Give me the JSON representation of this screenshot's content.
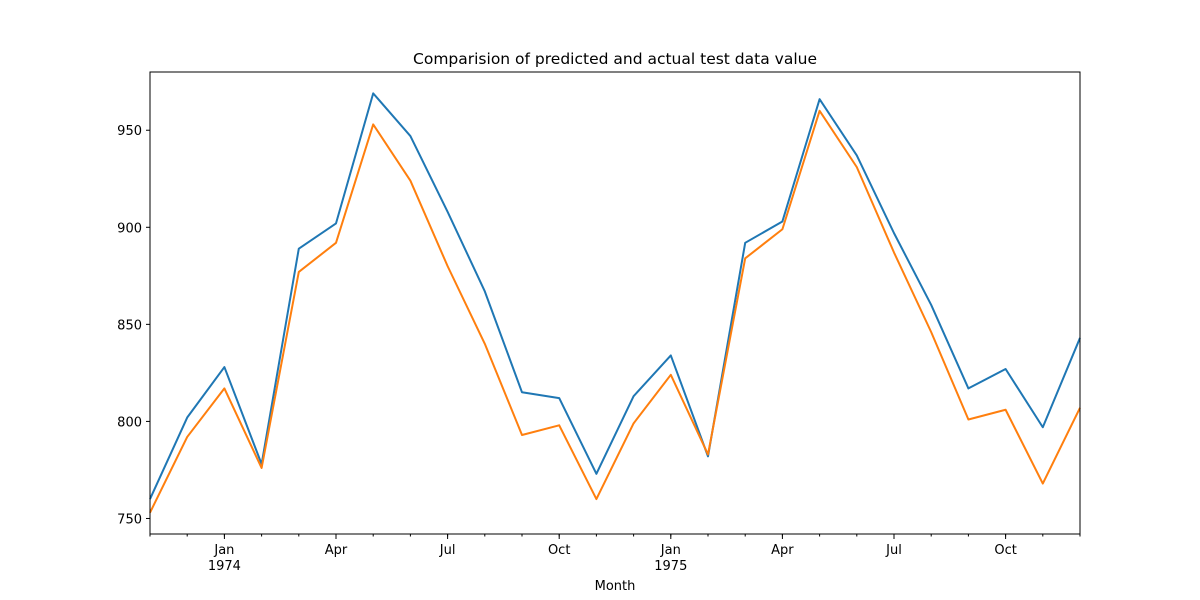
{
  "chart_data": {
    "type": "line",
    "title": "Comparision of predicted and actual test data value",
    "xlabel": "Month",
    "ylabel": "",
    "x": [
      "1973-11",
      "1973-12",
      "1974-01",
      "1974-02",
      "1974-03",
      "1974-04",
      "1974-05",
      "1974-06",
      "1974-07",
      "1974-08",
      "1974-09",
      "1974-10",
      "1974-11",
      "1974-12",
      "1975-01",
      "1975-02",
      "1975-03",
      "1975-04",
      "1975-05",
      "1975-06",
      "1975-07",
      "1975-08",
      "1975-09",
      "1975-10",
      "1975-11",
      "1975-12"
    ],
    "series": [
      {
        "color": "#1f77b4",
        "values": [
          760,
          802,
          828,
          778,
          889,
          902,
          969,
          947,
          908,
          867,
          815,
          812,
          773,
          813,
          834,
          782,
          892,
          903,
          966,
          937,
          897,
          860,
          817,
          827,
          797,
          843
        ]
      },
      {
        "color": "#ff7f0e",
        "values": [
          753,
          792,
          817,
          776,
          877,
          892,
          953,
          924,
          880,
          840,
          793,
          798,
          760,
          799,
          824,
          783,
          884,
          899,
          960,
          931,
          887,
          846,
          801,
          806,
          768,
          807
        ]
      }
    ],
    "ylim": [
      742,
      980
    ],
    "yticks": [
      750,
      800,
      850,
      900,
      950
    ],
    "xtick_labels": [
      {
        "month": "1974-01",
        "label": "Jan",
        "sublabel": "1974"
      },
      {
        "month": "1974-04",
        "label": "Apr",
        "sublabel": ""
      },
      {
        "month": "1974-07",
        "label": "Jul",
        "sublabel": ""
      },
      {
        "month": "1974-10",
        "label": "Oct",
        "sublabel": ""
      },
      {
        "month": "1975-01",
        "label": "Jan",
        "sublabel": "1975"
      },
      {
        "month": "1975-04",
        "label": "Apr",
        "sublabel": ""
      },
      {
        "month": "1975-07",
        "label": "Jul",
        "sublabel": ""
      },
      {
        "month": "1975-10",
        "label": "Oct",
        "sublabel": ""
      }
    ],
    "grid": false,
    "legend": "none"
  }
}
